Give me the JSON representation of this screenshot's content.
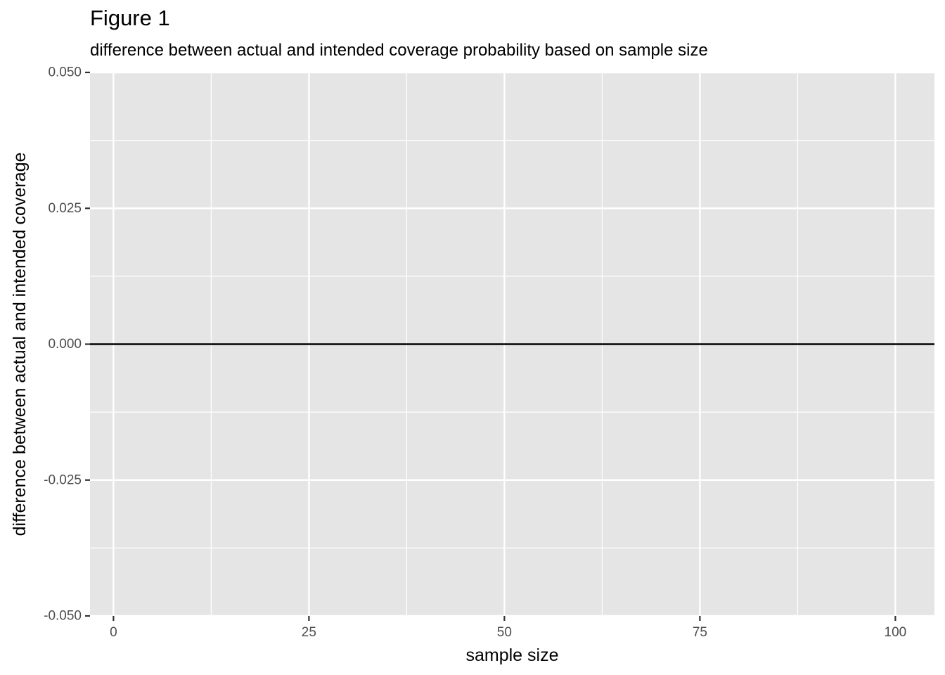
{
  "chart_data": {
    "type": "line",
    "title": "Figure 1",
    "subtitle": "difference between actual and intended coverage probability based on sample size",
    "xlabel": "sample size",
    "ylabel": "difference between actual and intended coverage",
    "xlim": [
      -3,
      105
    ],
    "ylim": [
      -0.05,
      0.05
    ],
    "x_ticks": [
      0,
      25,
      50,
      75,
      100
    ],
    "x_tick_labels": [
      "0",
      "25",
      "50",
      "75",
      "100"
    ],
    "y_ticks": [
      -0.05,
      -0.025,
      0,
      0.025,
      0.05
    ],
    "y_tick_labels": [
      "-0.050",
      "-0.025",
      "0.000",
      "0.025",
      "0.050"
    ],
    "grid": true,
    "reference_line": {
      "y": 0,
      "color": "#000000"
    },
    "series": [],
    "colors": {
      "panel": "#e5e5e5",
      "grid": "#ffffff",
      "tick_text": "#4d4d4d"
    }
  }
}
